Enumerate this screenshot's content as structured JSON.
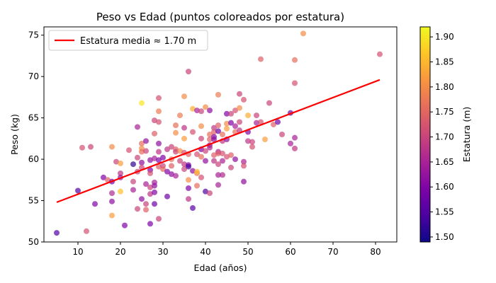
{
  "chart_data": {
    "type": "scatter",
    "title": "Peso vs Edad (puntos coloreados por estatura)",
    "xlabel": "Edad (años)",
    "ylabel": "Peso (kg)",
    "xlim": [
      2,
      85
    ],
    "ylim": [
      50,
      76
    ],
    "xticks": [
      10,
      20,
      30,
      40,
      50,
      60,
      70,
      80
    ],
    "yticks": [
      50,
      55,
      60,
      65,
      70,
      75
    ],
    "grid": false,
    "legend_position": "upper-left",
    "colorbar": {
      "label": "Estatura (m)",
      "colormap": "plasma",
      "range": [
        1.49,
        1.92
      ],
      "ticks": [
        1.5,
        1.55,
        1.6,
        1.65,
        1.7,
        1.75,
        1.8,
        1.85,
        1.9
      ]
    },
    "trend_line": {
      "label": "Estatura media ≈ 1.70 m",
      "color": "#ff0000",
      "x": [
        5,
        81
      ],
      "y": [
        54.8,
        69.6
      ]
    },
    "points": [
      [
        5,
        51.1,
        1.55
      ],
      [
        10,
        56.2,
        1.55
      ],
      [
        11,
        61.4,
        1.72
      ],
      [
        12,
        51.3,
        1.72
      ],
      [
        13,
        61.5,
        1.7
      ],
      [
        14,
        54.6,
        1.6
      ],
      [
        16,
        57.8,
        1.6
      ],
      [
        17,
        57.5,
        1.74
      ],
      [
        18,
        61.5,
        1.8
      ],
      [
        18,
        55.9,
        1.66
      ],
      [
        18,
        54.9,
        1.62
      ],
      [
        18,
        53.2,
        1.82
      ],
      [
        18,
        57.3,
        1.58
      ],
      [
        19,
        59.7,
        1.7
      ],
      [
        20,
        56.1,
        1.86
      ],
      [
        20,
        58.3,
        1.68
      ],
      [
        20,
        57.8,
        1.63
      ],
      [
        20,
        59.5,
        1.82
      ],
      [
        21,
        52.0,
        1.6
      ],
      [
        22,
        61.1,
        1.72
      ],
      [
        23,
        59.4,
        1.52
      ],
      [
        23,
        57.3,
        1.7
      ],
      [
        23,
        56.3,
        1.65
      ],
      [
        24,
        63.9,
        1.65
      ],
      [
        24,
        60.2,
        1.7
      ],
      [
        24,
        54.0,
        1.7
      ],
      [
        24,
        58.5,
        1.7
      ],
      [
        25,
        66.8,
        1.9
      ],
      [
        25,
        61.9,
        1.76
      ],
      [
        25,
        61.3,
        1.8
      ],
      [
        25,
        60.9,
        1.76
      ],
      [
        25,
        59.6,
        1.62
      ],
      [
        25,
        59.0,
        1.7
      ],
      [
        25,
        55.2,
        1.62
      ],
      [
        26,
        62.2,
        1.62
      ],
      [
        26,
        57.0,
        1.65
      ],
      [
        26,
        54.6,
        1.7
      ],
      [
        26,
        53.9,
        1.74
      ],
      [
        26,
        61.0,
        1.7
      ],
      [
        27,
        59.9,
        1.62
      ],
      [
        27,
        58.7,
        1.6
      ],
      [
        27,
        58.3,
        1.72
      ],
      [
        27,
        56.6,
        1.7
      ],
      [
        27,
        55.8,
        1.68
      ],
      [
        27,
        52.2,
        1.6
      ],
      [
        28,
        64.7,
        1.7
      ],
      [
        28,
        63.1,
        1.74
      ],
      [
        28,
        60.1,
        1.65
      ],
      [
        28,
        57.2,
        1.65
      ],
      [
        28,
        56.8,
        1.62
      ],
      [
        28,
        56.0,
        1.6
      ],
      [
        28,
        54.6,
        1.58
      ],
      [
        29,
        67.4,
        1.72
      ],
      [
        29,
        65.8,
        1.78
      ],
      [
        29,
        64.5,
        1.72
      ],
      [
        29,
        61.9,
        1.62
      ],
      [
        29,
        60.9,
        1.68
      ],
      [
        29,
        59.9,
        1.6
      ],
      [
        29,
        59.1,
        1.74
      ],
      [
        29,
        52.8,
        1.7
      ],
      [
        30,
        60.2,
        1.6
      ],
      [
        30,
        59.2,
        1.7
      ],
      [
        30,
        58.8,
        1.75
      ],
      [
        31,
        61.2,
        1.68
      ],
      [
        31,
        58.5,
        1.6
      ],
      [
        31,
        55.5,
        1.58
      ],
      [
        32,
        61.5,
        1.7
      ],
      [
        32,
        60.0,
        1.76
      ],
      [
        32,
        59.2,
        1.74
      ],
      [
        32,
        58.2,
        1.62
      ],
      [
        33,
        64.1,
        1.76
      ],
      [
        33,
        63.2,
        1.8
      ],
      [
        33,
        61.2,
        1.74
      ],
      [
        33,
        60.9,
        1.7
      ],
      [
        33,
        58.0,
        1.65
      ],
      [
        34,
        65.3,
        1.78
      ],
      [
        34,
        61.0,
        1.8
      ],
      [
        34,
        59.8,
        1.7
      ],
      [
        35,
        67.6,
        1.8
      ],
      [
        35,
        63.8,
        1.68
      ],
      [
        35,
        62.5,
        1.82
      ],
      [
        35,
        60.8,
        1.72
      ],
      [
        35,
        59.4,
        1.68
      ],
      [
        35,
        58.8,
        1.7
      ],
      [
        36,
        70.6,
        1.7
      ],
      [
        36,
        59.3,
        1.6
      ],
      [
        36,
        59.1,
        1.54
      ],
      [
        36,
        56.5,
        1.6
      ],
      [
        36,
        55.2,
        1.68
      ],
      [
        36,
        57.5,
        1.8
      ],
      [
        36,
        60.6,
        1.74
      ],
      [
        37,
        66.1,
        1.84
      ],
      [
        37,
        63.3,
        1.72
      ],
      [
        37,
        58.6,
        1.62
      ],
      [
        37,
        54.1,
        1.56
      ],
      [
        38,
        65.9,
        1.65
      ],
      [
        38,
        60.6,
        1.72
      ],
      [
        38,
        58.3,
        1.78
      ],
      [
        38,
        56.8,
        1.76
      ],
      [
        38,
        58.5,
        1.85
      ],
      [
        39,
        65.8,
        1.7
      ],
      [
        39,
        64.0,
        1.8
      ],
      [
        39,
        62.5,
        1.7
      ],
      [
        39,
        61.2,
        1.6
      ],
      [
        39,
        60.3,
        1.76
      ],
      [
        39,
        57.8,
        1.72
      ],
      [
        40,
        66.3,
        1.8
      ],
      [
        40,
        61.0,
        1.7
      ],
      [
        40,
        59.8,
        1.62
      ],
      [
        40,
        56.1,
        1.55
      ],
      [
        41,
        65.9,
        1.62
      ],
      [
        41,
        63.0,
        1.76
      ],
      [
        41,
        62.4,
        1.74
      ],
      [
        41,
        61.7,
        1.62
      ],
      [
        41,
        61.4,
        1.66
      ],
      [
        41,
        55.9,
        1.7
      ],
      [
        42,
        63.8,
        1.68
      ],
      [
        42,
        63.3,
        1.74
      ],
      [
        42,
        62.7,
        1.6
      ],
      [
        42,
        62.4,
        1.62
      ],
      [
        42,
        60.5,
        1.74
      ],
      [
        42,
        59.8,
        1.68
      ],
      [
        43,
        67.8,
        1.78
      ],
      [
        43,
        64.1,
        1.74
      ],
      [
        43,
        63.4,
        1.58
      ],
      [
        43,
        60.9,
        1.65
      ],
      [
        43,
        60.7,
        1.74
      ],
      [
        43,
        59.4,
        1.7
      ],
      [
        43,
        58.1,
        1.65
      ],
      [
        43,
        56.9,
        1.65
      ],
      [
        44,
        63.0,
        1.76
      ],
      [
        44,
        62.2,
        1.68
      ],
      [
        44,
        60.7,
        1.72
      ],
      [
        44,
        59.8,
        1.65
      ],
      [
        44,
        58.1,
        1.66
      ],
      [
        45,
        65.5,
        1.6
      ],
      [
        45,
        64.3,
        1.8
      ],
      [
        45,
        63.7,
        1.82
      ],
      [
        45,
        62.4,
        1.62
      ],
      [
        45,
        60.3,
        1.72
      ],
      [
        46,
        65.5,
        1.7
      ],
      [
        46,
        64.4,
        1.6
      ],
      [
        46,
        60.5,
        1.74
      ],
      [
        46,
        59.0,
        1.7
      ],
      [
        47,
        65.9,
        1.72
      ],
      [
        47,
        64.0,
        1.65
      ],
      [
        47,
        63.3,
        1.76
      ],
      [
        47,
        60.0,
        1.62
      ],
      [
        48,
        67.9,
        1.7
      ],
      [
        48,
        66.2,
        1.8
      ],
      [
        48,
        64.5,
        1.7
      ],
      [
        48,
        63.5,
        1.68
      ],
      [
        49,
        67.2,
        1.72
      ],
      [
        49,
        59.7,
        1.65
      ],
      [
        49,
        59.2,
        1.72
      ],
      [
        49,
        57.3,
        1.62
      ],
      [
        50,
        65.3,
        1.84
      ],
      [
        50,
        63.3,
        1.6
      ],
      [
        50,
        62.2,
        1.68
      ],
      [
        51,
        62.1,
        1.7
      ],
      [
        51,
        61.5,
        1.72
      ],
      [
        52,
        65.3,
        1.7
      ],
      [
        52,
        64.4,
        1.65
      ],
      [
        53,
        72.1,
        1.74
      ],
      [
        53,
        64.5,
        1.72
      ],
      [
        54,
        62.4,
        1.82
      ],
      [
        55,
        66.8,
        1.7
      ],
      [
        56,
        64.2,
        1.74
      ],
      [
        57,
        64.5,
        1.58
      ],
      [
        58,
        63.0,
        1.7
      ],
      [
        60,
        65.6,
        1.58
      ],
      [
        60,
        61.9,
        1.65
      ],
      [
        61,
        72.0,
        1.76
      ],
      [
        61,
        69.2,
        1.72
      ],
      [
        61,
        62.6,
        1.65
      ],
      [
        61,
        61.3,
        1.68
      ],
      [
        63,
        75.2,
        1.8
      ],
      [
        81,
        72.7,
        1.72
      ]
    ]
  }
}
